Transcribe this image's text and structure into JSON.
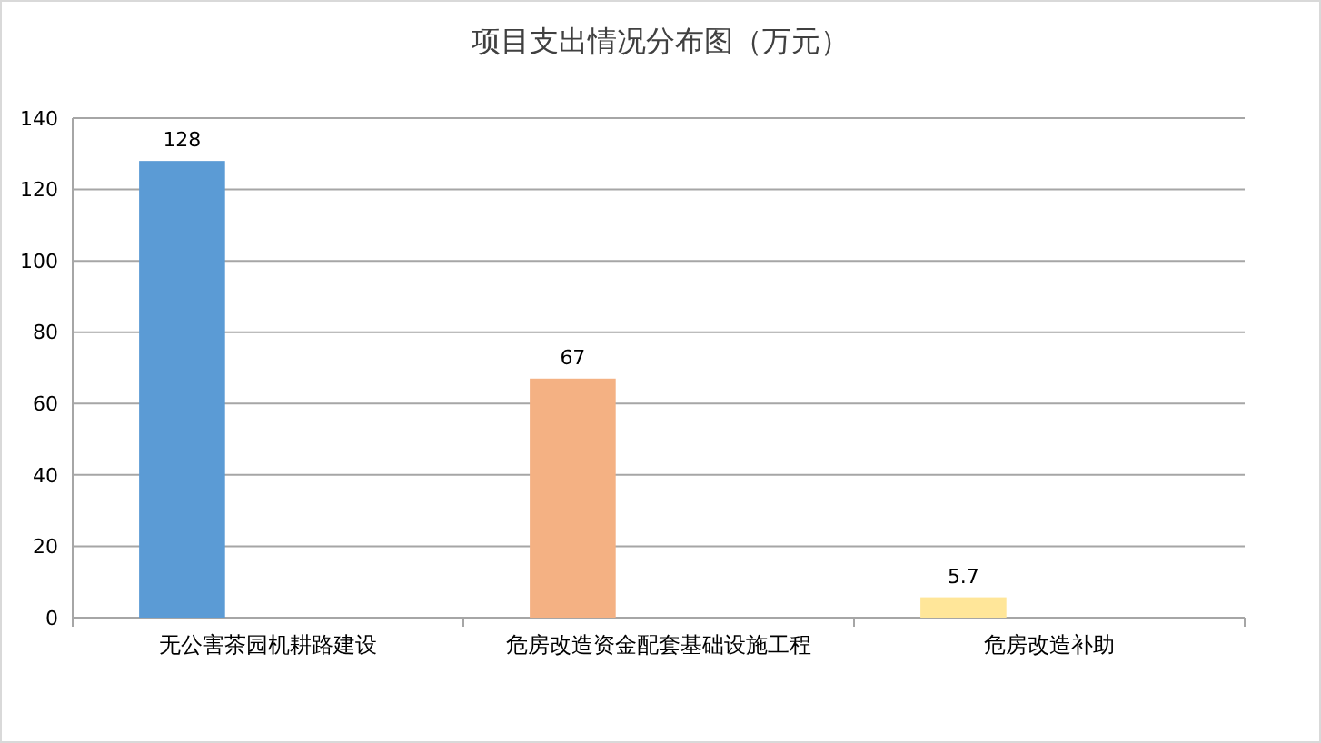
{
  "chart_data": {
    "type": "bar",
    "title": "项目支出情况分布图（万元）",
    "categories": [
      "无公害茶园机耕路建设",
      "危房改造资金配套基础设施工程",
      "危房改造补助"
    ],
    "values": [
      128,
      67,
      5.7
    ],
    "colors": [
      "#5b9bd5",
      "#f4b183",
      "#ffe699"
    ],
    "ylim": [
      0,
      140
    ],
    "yticks": [
      0,
      20,
      40,
      60,
      80,
      100,
      120,
      140
    ],
    "grid": "y",
    "data_labels": true
  }
}
